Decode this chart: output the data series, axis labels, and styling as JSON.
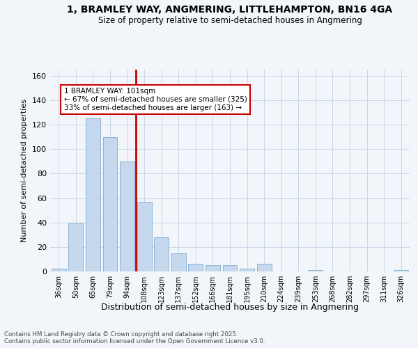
{
  "title_line1": "1, BRAMLEY WAY, ANGMERING, LITTLEHAMPTON, BN16 4GA",
  "title_line2": "Size of property relative to semi-detached houses in Angmering",
  "xlabel": "Distribution of semi-detached houses by size in Angmering",
  "ylabel": "Number of semi-detached properties",
  "categories": [
    "36sqm",
    "50sqm",
    "65sqm",
    "79sqm",
    "94sqm",
    "108sqm",
    "123sqm",
    "137sqm",
    "152sqm",
    "166sqm",
    "181sqm",
    "195sqm",
    "210sqm",
    "224sqm",
    "239sqm",
    "253sqm",
    "268sqm",
    "282sqm",
    "297sqm",
    "311sqm",
    "326sqm"
  ],
  "values": [
    2,
    40,
    125,
    110,
    90,
    57,
    28,
    15,
    6,
    5,
    5,
    2,
    6,
    0,
    0,
    1,
    0,
    0,
    0,
    0,
    1
  ],
  "bar_color": "#c5d8ed",
  "bar_edgecolor": "#8ab4d4",
  "vline_x": 4.5,
  "vline_color": "#cc0000",
  "annotation_title": "1 BRAMLEY WAY: 101sqm",
  "annotation_line1": "← 67% of semi-detached houses are smaller (325)",
  "annotation_line2": "33% of semi-detached houses are larger (163) →",
  "annotation_box_color": "#ffffff",
  "annotation_box_edgecolor": "#cc0000",
  "ylim": [
    0,
    165
  ],
  "yticks": [
    0,
    20,
    40,
    60,
    80,
    100,
    120,
    140,
    160
  ],
  "footer_line1": "Contains HM Land Registry data © Crown copyright and database right 2025.",
  "footer_line2": "Contains public sector information licensed under the Open Government Licence v3.0.",
  "bg_color": "#f2f5f9"
}
